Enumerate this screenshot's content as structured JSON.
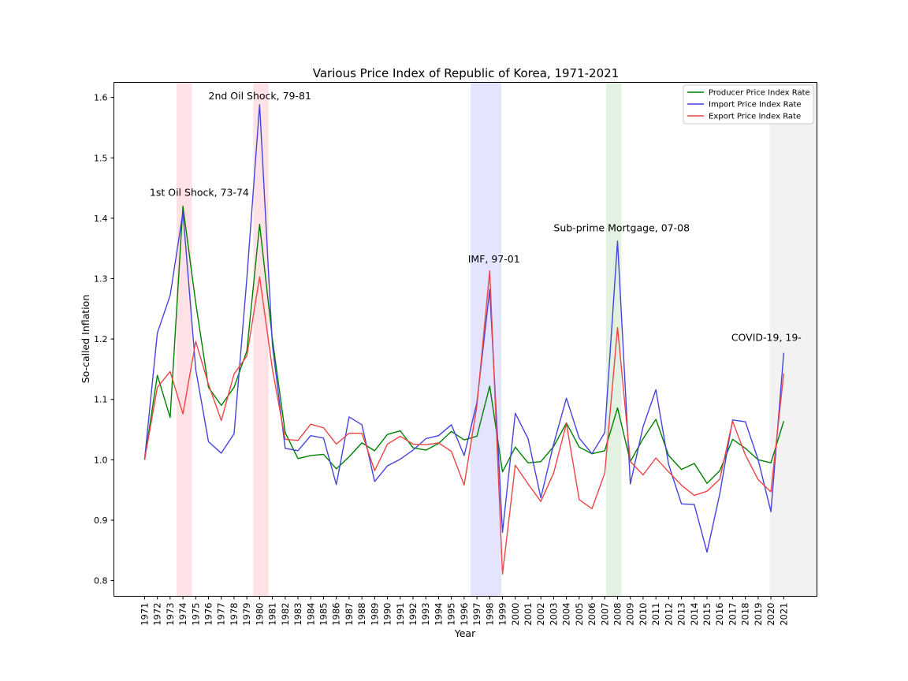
{
  "chart_data": {
    "type": "line",
    "title": "Various Price Index of Republic of Korea, 1971-2021",
    "xlabel": "Year",
    "ylabel": "So-called Inflation",
    "xlim": [
      1968.6,
      2023.6
    ],
    "ylim": [
      0.774,
      1.625
    ],
    "yticks": [
      0.8,
      0.9,
      1.0,
      1.1,
      1.2,
      1.3,
      1.4,
      1.5,
      1.6
    ],
    "ytick_labels": [
      "0.8",
      "0.9",
      "1.0",
      "1.1",
      "1.2",
      "1.3",
      "1.4",
      "1.5",
      "1.6"
    ],
    "x": [
      1971,
      1972,
      1973,
      1974,
      1975,
      1976,
      1977,
      1978,
      1979,
      1980,
      1981,
      1982,
      1983,
      1984,
      1985,
      1986,
      1987,
      1988,
      1989,
      1990,
      1991,
      1992,
      1993,
      1994,
      1995,
      1996,
      1997,
      1998,
      1999,
      2000,
      2001,
      2002,
      2003,
      2004,
      2005,
      2006,
      2007,
      2008,
      2009,
      2010,
      2011,
      2012,
      2013,
      2014,
      2015,
      2016,
      2017,
      2018,
      2019,
      2020,
      2021
    ],
    "x_tick_labels": [
      "1971",
      "1972",
      "1973",
      "1974",
      "1975",
      "1976",
      "1977",
      "1978",
      "1979",
      "1980",
      "1981",
      "1982",
      "1983",
      "1984",
      "1985",
      "1986",
      "1987",
      "1988",
      "1989",
      "1990",
      "1991",
      "1992",
      "1993",
      "1994",
      "1995",
      "1996",
      "1997",
      "1998",
      "1999",
      "2000",
      "2001",
      "2002",
      "2003",
      "2004",
      "2005",
      "2006",
      "2007",
      "2008",
      "2009",
      "2010",
      "2011",
      "2012",
      "2013",
      "2014",
      "2015",
      "2016",
      "2017",
      "2018",
      "2019",
      "2020",
      "2021"
    ],
    "grid": false,
    "legend_position": "top-right",
    "series": [
      {
        "name": "Producer Price Index Rate",
        "color": "#008000",
        "values": [
          1.0,
          1.14,
          1.07,
          1.42,
          1.26,
          1.12,
          1.09,
          1.12,
          1.18,
          1.39,
          1.2,
          1.045,
          1.002,
          1.007,
          1.009,
          0.985,
          1.005,
          1.028,
          1.015,
          1.042,
          1.048,
          1.02,
          1.016,
          1.027,
          1.047,
          1.033,
          1.039,
          1.122,
          0.98,
          1.021,
          0.995,
          0.997,
          1.022,
          1.061,
          1.021,
          1.01,
          1.015,
          1.086,
          0.997,
          1.035,
          1.067,
          1.007,
          0.984,
          0.994,
          0.961,
          0.982,
          1.034,
          1.019,
          1.0,
          0.995,
          1.064
        ]
      },
      {
        "name": "Import Price Index Rate",
        "color": "#4444dd",
        "values": [
          1.0,
          1.21,
          1.272,
          1.41,
          1.15,
          1.03,
          1.011,
          1.043,
          1.3,
          1.588,
          1.19,
          1.019,
          1.015,
          1.04,
          1.036,
          0.959,
          1.071,
          1.058,
          0.964,
          0.99,
          1.001,
          1.016,
          1.035,
          1.04,
          1.058,
          1.007,
          1.095,
          1.282,
          0.88,
          1.077,
          1.035,
          0.937,
          1.026,
          1.102,
          1.036,
          1.01,
          1.045,
          1.362,
          0.96,
          1.055,
          1.116,
          0.992,
          0.927,
          0.926,
          0.847,
          0.944,
          1.066,
          1.063,
          1.0,
          0.914,
          1.177
        ]
      },
      {
        "name": "Export Price Index Rate",
        "color": "#ee4444",
        "values": [
          1.0,
          1.12,
          1.146,
          1.076,
          1.196,
          1.125,
          1.065,
          1.142,
          1.172,
          1.303,
          1.15,
          1.034,
          1.032,
          1.059,
          1.053,
          1.026,
          1.044,
          1.044,
          0.982,
          1.026,
          1.039,
          1.026,
          1.025,
          1.028,
          1.014,
          0.958,
          1.09,
          1.313,
          0.811,
          0.991,
          0.96,
          0.931,
          0.978,
          1.06,
          0.934,
          0.919,
          0.978,
          1.219,
          0.997,
          0.975,
          1.003,
          0.98,
          0.958,
          0.941,
          0.948,
          0.968,
          1.064,
          1.008,
          0.967,
          0.947,
          1.143
        ]
      }
    ],
    "shaded_regions": [
      {
        "start": 1973.5,
        "end": 1974.7,
        "color": "#ffe2e6"
      },
      {
        "start": 1979.5,
        "end": 1980.7,
        "color": "#ffe2e6"
      },
      {
        "start": 1996.5,
        "end": 1998.9,
        "color": "#e4e4ff"
      },
      {
        "start": 2007.1,
        "end": 2008.3,
        "color": "#e2f1e2"
      },
      {
        "start": 2019.9,
        "end": 2023.6,
        "color": "#f2f2f2"
      }
    ],
    "annotations": [
      {
        "text": "1st Oil Shock, 73-74",
        "x": 1971.4,
        "y": 1.437
      },
      {
        "text": "2nd Oil Shock, 79-81",
        "x": 1976.0,
        "y": 1.597
      },
      {
        "text": "IMF, 97-01",
        "x": 1996.3,
        "y": 1.327
      },
      {
        "text": "Sub-prime Mortgage, 07-08",
        "x": 2003.0,
        "y": 1.378
      },
      {
        "text": "COVID-19, 19-",
        "x": 2016.9,
        "y": 1.197
      }
    ]
  }
}
